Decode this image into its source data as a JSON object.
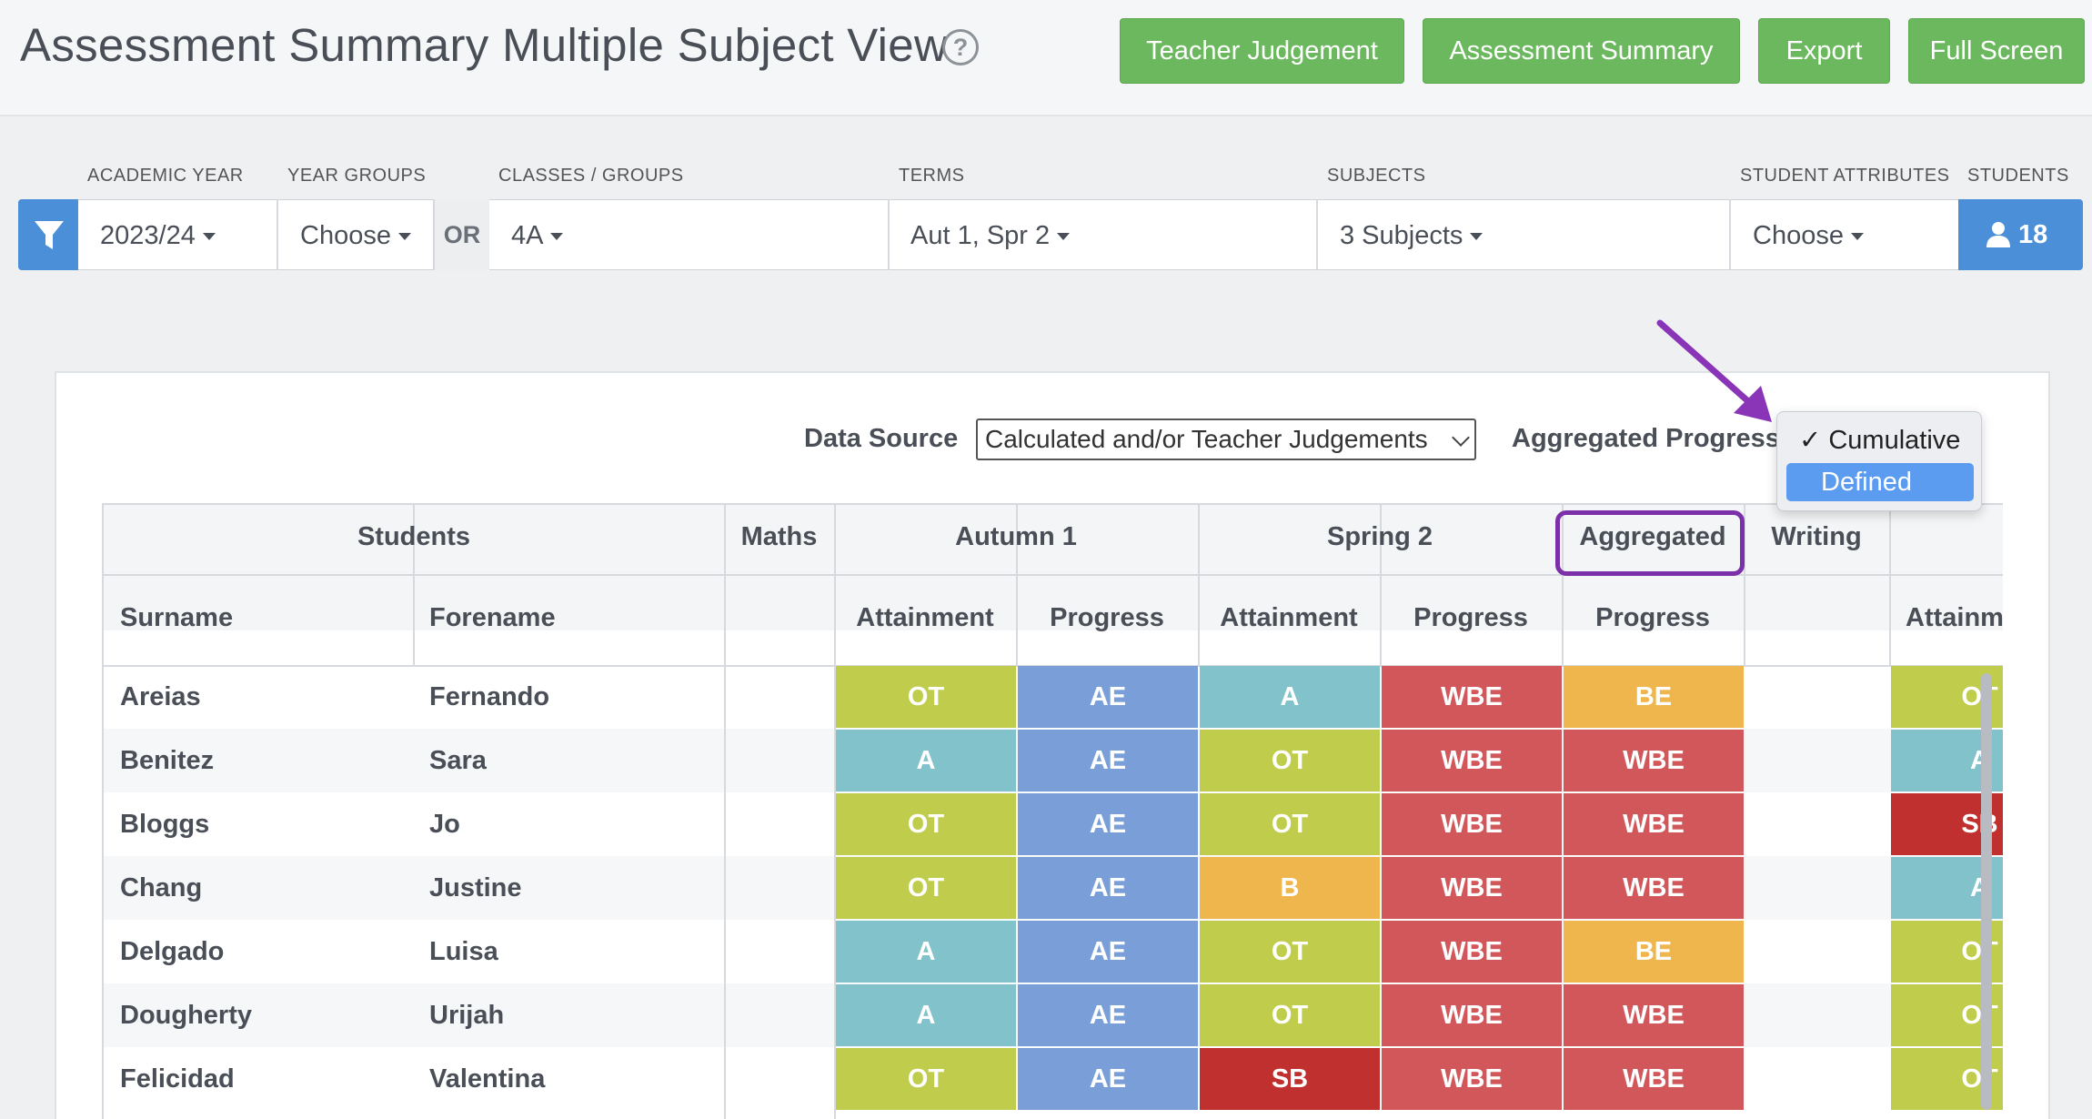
{
  "header": {
    "title": "Assessment Summary Multiple Subject View",
    "buttons": {
      "teacher_judgement": "Teacher Judgement",
      "assessment_summary": "Assessment Summary",
      "export": "Export",
      "full_screen": "Full Screen"
    }
  },
  "filters": {
    "academic_year_label": "ACADEMIC YEAR",
    "academic_year_value": "2023/24",
    "year_groups_label": "YEAR GROUPS",
    "year_groups_value": "Choose",
    "or_label": "OR",
    "classes_label": "CLASSES / GROUPS",
    "classes_value": "4A",
    "terms_label": "TERMS",
    "terms_value": "Aut 1, Spr 2",
    "subjects_label": "SUBJECTS",
    "subjects_value": "3 Subjects",
    "attributes_label": "STUDENT ATTRIBUTES",
    "attributes_value": "Choose",
    "students_label": "STUDENTS",
    "students_count": "18"
  },
  "options": {
    "data_source_label": "Data Source",
    "data_source_value": "Calculated and/or Teacher Judgements",
    "aggregated_progress_label": "Aggregated Progress",
    "dropdown": [
      "Cumulative",
      "Defined"
    ],
    "dropdown_checked": "✓ Cumulative"
  },
  "table": {
    "group_headers": {
      "students": "Students",
      "maths": "Maths",
      "autumn1": "Autumn 1",
      "spring2": "Spring 2",
      "aggregated": "Aggregated",
      "writing": "Writing"
    },
    "col_headers": {
      "surname": "Surname",
      "forename": "Forename",
      "a1_att": "Attainment",
      "a1_prog": "Progress",
      "s2_att": "Attainment",
      "s2_prog": "Progress",
      "agg_prog": "Progress",
      "w_att": "Attainm"
    },
    "rows": [
      {
        "surname": "Areias",
        "forename": "Fernando",
        "a1_att": "OT",
        "a1_prog": "AE",
        "s2_att": "A",
        "s2_prog": "WBE",
        "agg": "BE",
        "w_att": "OT"
      },
      {
        "surname": "Benitez",
        "forename": "Sara",
        "a1_att": "A",
        "a1_prog": "AE",
        "s2_att": "OT",
        "s2_prog": "WBE",
        "agg": "WBE",
        "w_att": "A"
      },
      {
        "surname": "Bloggs",
        "forename": "Jo",
        "a1_att": "OT",
        "a1_prog": "AE",
        "s2_att": "OT",
        "s2_prog": "WBE",
        "agg": "WBE",
        "w_att": "SB"
      },
      {
        "surname": "Chang",
        "forename": "Justine",
        "a1_att": "OT",
        "a1_prog": "AE",
        "s2_att": "B",
        "s2_prog": "WBE",
        "agg": "WBE",
        "w_att": "A"
      },
      {
        "surname": "Delgado",
        "forename": "Luisa",
        "a1_att": "A",
        "a1_prog": "AE",
        "s2_att": "OT",
        "s2_prog": "WBE",
        "agg": "BE",
        "w_att": "OT"
      },
      {
        "surname": "Dougherty",
        "forename": "Urijah",
        "a1_att": "A",
        "a1_prog": "AE",
        "s2_att": "OT",
        "s2_prog": "WBE",
        "agg": "WBE",
        "w_att": "OT"
      },
      {
        "surname": "Felicidad",
        "forename": "Valentina",
        "a1_att": "OT",
        "a1_prog": "AE",
        "s2_att": "SB",
        "s2_prog": "WBE",
        "agg": "WBE",
        "w_att": "OT"
      }
    ]
  },
  "colors": {
    "OT": "#bfcc4c",
    "A": "#82c3cb",
    "AE": "#7a9fd8",
    "WBE": "#d2575b",
    "BE": "#f0b64e",
    "B": "#f0b64e",
    "SB": "#c0302e",
    "accent_green": "#6cb85e",
    "accent_blue": "#4a8fd8",
    "highlight_purple": "#7b2fa8"
  }
}
